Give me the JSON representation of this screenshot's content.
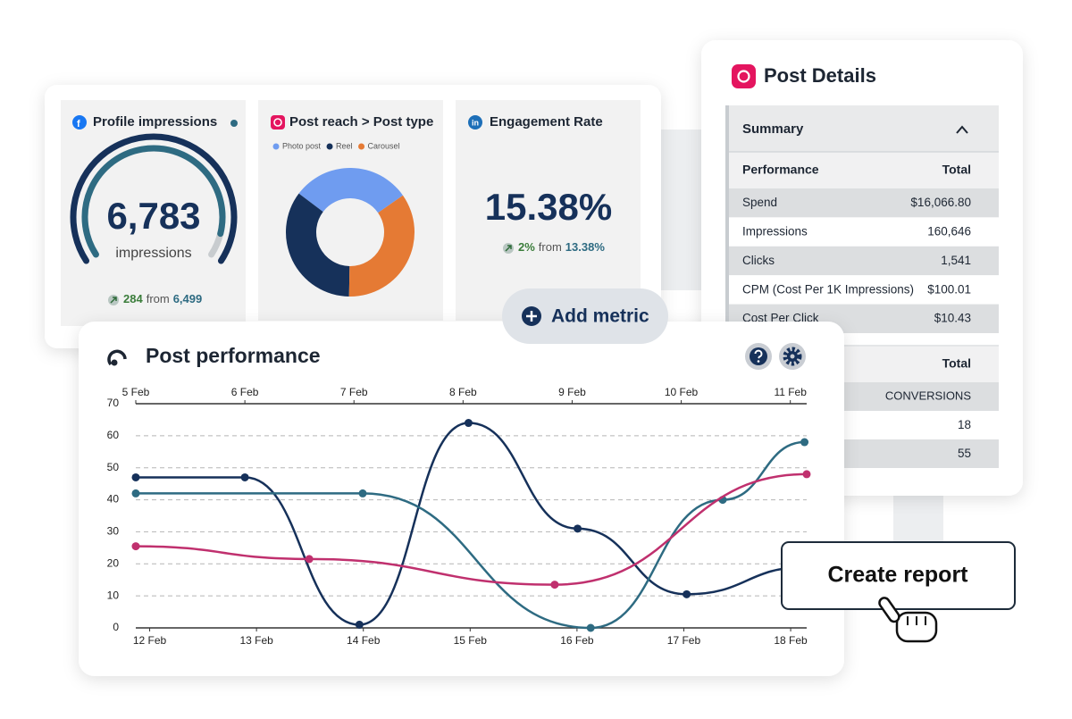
{
  "dashboard": {
    "profile_impressions": {
      "title": "Profile impressions",
      "value": "6,783",
      "unit": "impressions",
      "change": "284",
      "from": "from",
      "previous": "6,499"
    },
    "post_reach": {
      "title": "Post reach > Post type",
      "type": "donut",
      "series": [
        {
          "name": "Photo post",
          "color": "#6f9cf0",
          "value": 30
        },
        {
          "name": "Reel",
          "color": "#16315a",
          "value": 35
        },
        {
          "name": "Carousel",
          "color": "#e57a34",
          "value": 35
        }
      ]
    },
    "engagement_rate": {
      "title": "Engagement Rate",
      "value": "15.38%",
      "change": "2%",
      "from": "from",
      "previous": "13.38%"
    },
    "add_metric": "Add metric"
  },
  "post_details": {
    "title": "Post Details",
    "summary": "Summary",
    "table": {
      "header": [
        "Performance",
        "Total"
      ],
      "rows": [
        [
          "Spend",
          "$16,066.80"
        ],
        [
          "Impressions",
          "160,646"
        ],
        [
          "Clicks",
          "1,541"
        ],
        [
          "CPM (Cost Per 1K Impressions)",
          "$100.01"
        ],
        [
          "Cost Per Click",
          "$10.43"
        ]
      ]
    },
    "table2": {
      "header": "Total",
      "subheader": "CONVERSIONS",
      "rows": [
        "18",
        "55"
      ]
    }
  },
  "post_performance": {
    "title": "Post performance",
    "chart_data": {
      "type": "line",
      "xlim": [
        5,
        11.15
      ],
      "xticks": [
        {
          "value": 5,
          "label": "5 Feb"
        },
        {
          "value": 6,
          "label": "6 Feb"
        },
        {
          "value": 7,
          "label": "7 Feb"
        },
        {
          "value": 8,
          "label": "8 Feb"
        },
        {
          "value": 9,
          "label": "9 Feb"
        },
        {
          "value": 10,
          "label": "10 Feb"
        },
        {
          "value": 11,
          "label": "11 Feb"
        }
      ],
      "x2lim": [
        11.87,
        18.15
      ],
      "x2ticks": [
        {
          "value": 12,
          "label": "12 Feb"
        },
        {
          "value": 13,
          "label": "13 Feb"
        },
        {
          "value": 14,
          "label": "14 Feb"
        },
        {
          "value": 15,
          "label": "15 Feb"
        },
        {
          "value": 16,
          "label": "16 Feb"
        },
        {
          "value": 17,
          "label": "17 Feb"
        },
        {
          "value": 18,
          "label": "18 Feb"
        }
      ],
      "ylim": [
        0,
        70
      ],
      "yticks": [
        0,
        10,
        20,
        30,
        40,
        50,
        60,
        70
      ],
      "grid": true,
      "series": [
        {
          "color": "#16315a",
          "x": [
            5,
            6,
            7.05,
            8.05,
            9.05,
            10.05,
            11.15
          ],
          "values": [
            47,
            47,
            1,
            64,
            31,
            10.5,
            19
          ]
        },
        {
          "color": "#2e6b82",
          "x": [
            5,
            7.08,
            9.17,
            10.38,
            11.13
          ],
          "values": [
            42,
            42,
            0,
            40,
            58
          ]
        },
        {
          "color": "#c0306e",
          "x": [
            5,
            6.59,
            8.84,
            11.15
          ],
          "values": [
            25.5,
            21.5,
            13.5,
            48
          ]
        }
      ]
    }
  },
  "create_report": "Create report"
}
